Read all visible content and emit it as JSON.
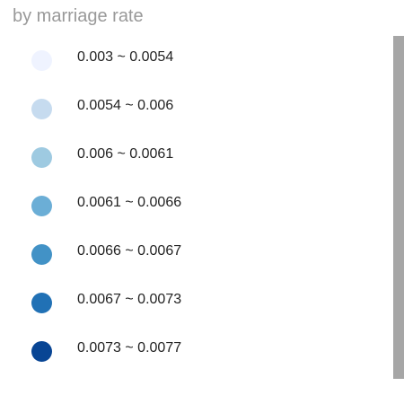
{
  "legend": {
    "title": "by marriage rate",
    "items": [
      {
        "label": "0.003 ~ 0.0054",
        "color": "#eff3ff"
      },
      {
        "label": "0.0054 ~ 0.006",
        "color": "#c6dbef"
      },
      {
        "label": "0.006 ~ 0.0061",
        "color": "#9ecae1"
      },
      {
        "label": "0.0061 ~ 0.0066",
        "color": "#6baed6"
      },
      {
        "label": "0.0066 ~ 0.0067",
        "color": "#4292c6"
      },
      {
        "label": "0.0067 ~ 0.0073",
        "color": "#2171b5"
      },
      {
        "label": "0.0073 ~ 0.0077",
        "color": "#084594"
      }
    ]
  }
}
